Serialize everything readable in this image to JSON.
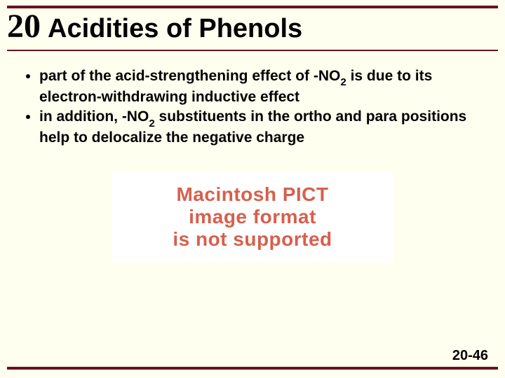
{
  "header": {
    "chapter_number": "20",
    "title": "Acidities of Phenols"
  },
  "bullets": [
    {
      "pre": "part of the acid-strengthening effect of -NO",
      "sub": "2",
      "post": " is due to its electron-withdrawing inductive effect"
    },
    {
      "pre": "in addition, -NO",
      "sub": "2",
      "post": " substituents in the ortho and para positions help to delocalize the negative charge"
    }
  ],
  "pict": {
    "line1": "Macintosh PICT",
    "line2": "image format",
    "line3": "is not supported",
    "text_color": "#d6604d",
    "bg_color": "#ffffff"
  },
  "page_number": "20-46",
  "colors": {
    "page_bg": "#fffff0",
    "rule": "#6b1020",
    "text": "#000000"
  }
}
